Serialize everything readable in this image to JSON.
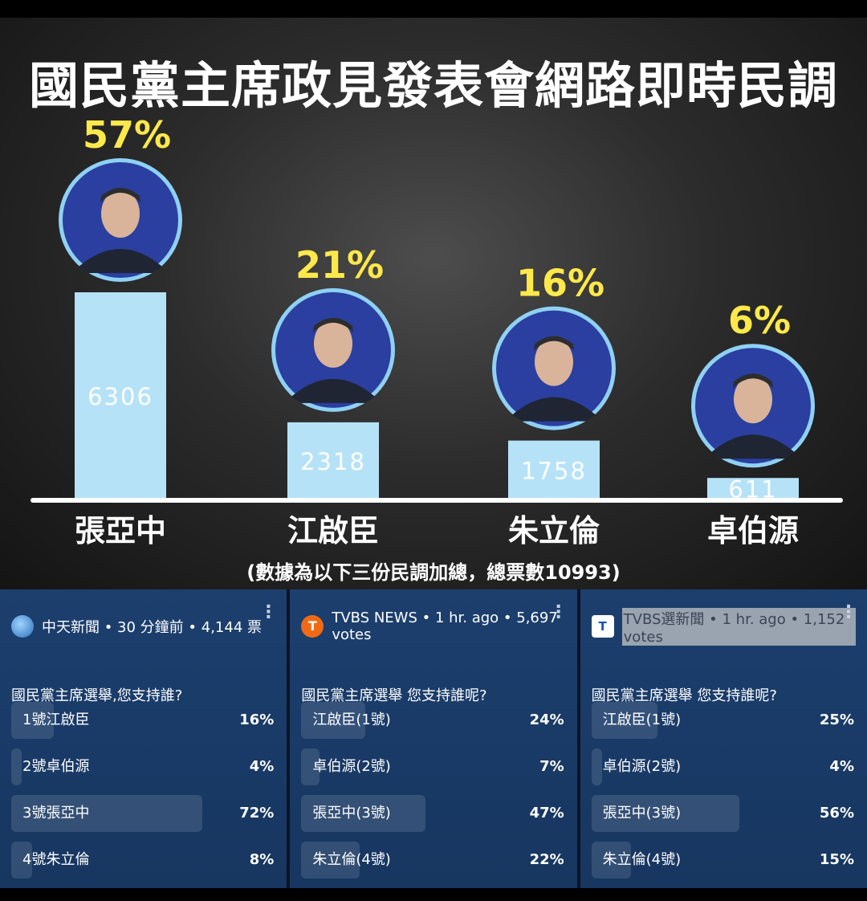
{
  "title": "國民黨主席政見發表會網路即時民調",
  "footnote": "(數據為以下三份民調加總，總票數10993)",
  "colors": {
    "bar": "#b6e2f8",
    "percent": "#ffe94a",
    "label": "#ffffff",
    "value_text": "#ffffff"
  },
  "chart_data": {
    "type": "bar",
    "title": "國民黨主席政見發表會網路即時民調",
    "categories": [
      "張亞中",
      "江啟臣",
      "朱立倫",
      "卓伯源"
    ],
    "values": [
      6306,
      2318,
      1758,
      611
    ],
    "percent_labels": [
      "57%",
      "21%",
      "16%",
      "6%"
    ],
    "total": 10993,
    "grid": false,
    "legend": false
  },
  "polls": [
    {
      "logo_icon": "ctitv-logo-icon",
      "source": "中天新聞 • 30 分鐘前 • 4,144 票",
      "question": "國民黨主席選舉,您支持誰?",
      "options": [
        {
          "label": "1號江啟臣",
          "pct": "16%",
          "value": 16
        },
        {
          "label": "2號卓伯源",
          "pct": "4%",
          "value": 4
        },
        {
          "label": "3號張亞中",
          "pct": "72%",
          "value": 72
        },
        {
          "label": "4號朱立倫",
          "pct": "8%",
          "value": 8
        }
      ]
    },
    {
      "logo_icon": "tvbs-logo-icon",
      "logo_text": "T",
      "source": "TVBS NEWS • 1 hr. ago • 5,697 votes",
      "question": "國民黨主席選舉 您支持誰呢?",
      "options": [
        {
          "label": "江啟臣(1號)",
          "pct": "24%",
          "value": 24
        },
        {
          "label": "卓伯源(2號)",
          "pct": "7%",
          "value": 7
        },
        {
          "label": "張亞中(3號)",
          "pct": "47%",
          "value": 47
        },
        {
          "label": "朱立倫(4號)",
          "pct": "22%",
          "value": 22
        }
      ]
    },
    {
      "logo_icon": "tvbs-election-logo-icon",
      "logo_text": "T",
      "source": "TVBS選新聞 • 1 hr. ago • 1,152 votes",
      "question": "國民黨主席選舉 您支持誰呢?",
      "options": [
        {
          "label": "江啟臣(1號)",
          "pct": "25%",
          "value": 25
        },
        {
          "label": "卓伯源(2號)",
          "pct": "4%",
          "value": 4
        },
        {
          "label": "張亞中(3號)",
          "pct": "56%",
          "value": 56
        },
        {
          "label": "朱立倫(4號)",
          "pct": "15%",
          "value": 15
        }
      ]
    }
  ]
}
